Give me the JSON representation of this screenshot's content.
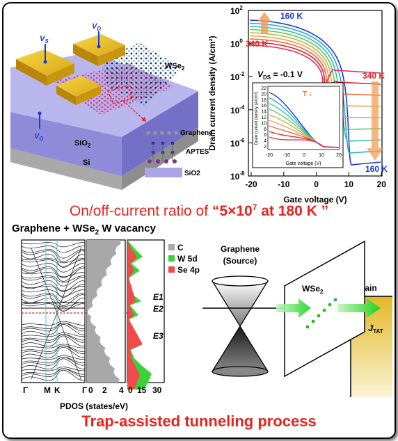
{
  "device": {
    "labels": {
      "vs": "V",
      "vs_sub": "S",
      "vd": "V",
      "vd_sub": "D",
      "vg": "V",
      "vg_sub": "G",
      "wse2": "WSe",
      "wse2_sub": "2",
      "sio2": "SiO",
      "sio2_sub": "2",
      "si": "Si"
    },
    "layers": [
      "Graphene",
      "APTES",
      "SiO2"
    ]
  },
  "transfer_plot": {
    "title_annotation": "V",
    "vds_sub": "DS",
    "vds_value": " = -0.1 V",
    "label_160_top": "160 K",
    "label_340_top": "340 K",
    "label_340_right": "340 K",
    "label_160_bottom": "160 K",
    "xlabel": "Gate voltage (V)",
    "ylabel": "Drain current density (A/cm²)",
    "xticks": [
      "-20",
      "-10",
      "0",
      "10",
      "20"
    ],
    "yticks": [
      "10",
      "10",
      "10",
      "10",
      "10",
      "10"
    ],
    "ytick_exps": [
      "2",
      "0",
      "-2",
      "-4",
      "-6",
      "-8"
    ],
    "inset": {
      "t_label": "T ↓",
      "xlabel": "Gate voltage (V)",
      "ylabel": "Drain current density (A/cm²)",
      "xticks": [
        "-20",
        "-10",
        "0",
        "10",
        "20"
      ],
      "yticks": [
        "22",
        "20",
        "18",
        "16",
        "14",
        "12",
        "10",
        "8",
        "6",
        "4",
        "2"
      ]
    }
  },
  "headline": {
    "prefix": "On/off-current ratio of  ",
    "quote_open": "“5×10",
    "exp": "7",
    "quote_close": " at 180 K ”"
  },
  "dft": {
    "title": "Graphene + WSe",
    "title_sub": "2",
    "title_suffix": " W vacancy",
    "kpoints": [
      "Γ",
      "M",
      "K",
      "Γ"
    ],
    "pdos_ticks": [
      "0",
      "2",
      "4"
    ],
    "pdos2_ticks": [
      "0",
      "15",
      "30"
    ],
    "pdos_label": "PDOS (states/eV)",
    "legend": [
      {
        "label": "C",
        "color": "#a8a8a8"
      },
      {
        "label": "W 5d",
        "color": "#38d23a"
      },
      {
        "label": "Se 4p",
        "color": "#f04a4a"
      }
    ],
    "levels": [
      "E1",
      "E2",
      "E3"
    ]
  },
  "tunnel": {
    "graphene_label": "Graphene",
    "source_label": "(Source)",
    "wse2_label": "WSe",
    "wse2_sub": "2",
    "drain_label": "Drain",
    "current_label": "J",
    "current_sub": "TAT"
  },
  "footer": "Trap-assisted tunneling process",
  "colors": {
    "accent": "#e8231e",
    "blue": "#1a3ad8",
    "gold": "#e3b826"
  }
}
